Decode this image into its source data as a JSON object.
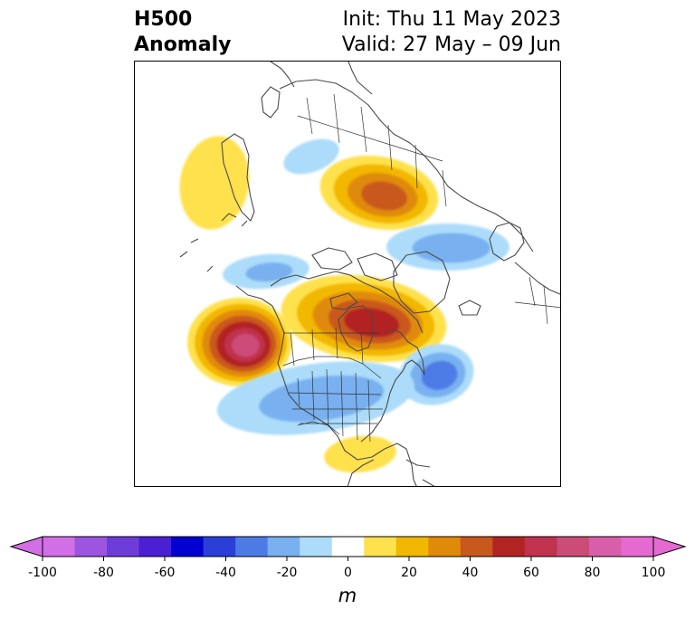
{
  "title": {
    "left_line1": "H500",
    "left_line2": "Anomaly",
    "right_line1": "Init: Thu 11 May 2023",
    "right_line2": "Valid: 27 May – 09 Jun"
  },
  "colorbar": {
    "unit": "m",
    "tick_labels": [
      "-100",
      "-80",
      "-60",
      "-40",
      "-20",
      "0",
      "20",
      "40",
      "60",
      "80",
      "100"
    ],
    "levels": [
      -100,
      -90,
      -80,
      -70,
      -60,
      -50,
      -40,
      -30,
      -20,
      -10,
      10,
      20,
      30,
      40,
      50,
      60,
      70,
      80,
      90,
      100
    ],
    "colors": [
      "#d26ee6",
      "#9b55e0",
      "#6e3cd8",
      "#4b1fd2",
      "#0000d0",
      "#2a3fd8",
      "#4d7be6",
      "#78b0f0",
      "#acdcfa",
      "#ffffff",
      "#ffe14d",
      "#f2b700",
      "#e08a0a",
      "#c9581c",
      "#b22424",
      "#c0324e",
      "#cc4c78",
      "#d85eaa",
      "#e46ad2"
    ],
    "extend_low_color": "#d26ee6",
    "extend_high_color": "#e46ad2"
  },
  "anomalies": [
    {
      "region": "northeast-pacific-gulf-of-alaska",
      "sign": "positive",
      "peak_m": 15
    },
    {
      "region": "northwest-canada",
      "sign": "negative",
      "peak_m": -15
    },
    {
      "region": "arctic-north-of-siberia",
      "sign": "positive",
      "peak_m": 45
    },
    {
      "region": "siberia-arctic-coast",
      "sign": "negative",
      "peak_m": -25
    },
    {
      "region": "arctic-ocean-north-of-alaska",
      "sign": "negative",
      "peak_m": -20
    },
    {
      "region": "canadian-arctic-archipelago",
      "sign": "positive",
      "peak_m": 55
    },
    {
      "region": "northeast-pacific-off-california",
      "sign": "positive",
      "peak_m": 75
    },
    {
      "region": "north-atlantic-off-newfoundland",
      "sign": "negative",
      "peak_m": -35
    },
    {
      "region": "central-eastern-united-states",
      "sign": "negative",
      "peak_m": -25
    },
    {
      "region": "us-southeast-gulf-coast",
      "sign": "positive",
      "peak_m": 15
    }
  ]
}
